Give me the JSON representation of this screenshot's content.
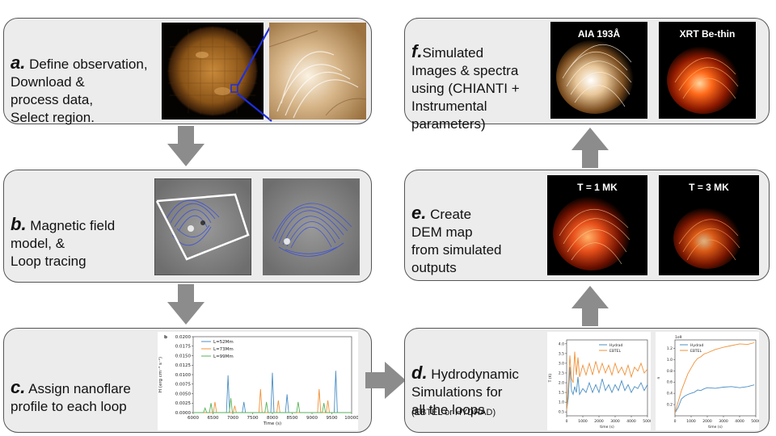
{
  "steps": {
    "a": {
      "letter": "a.",
      "text": " Define observation,\nDownload &\nprocess data,\nSelect region."
    },
    "b": {
      "letter": "b.",
      "text": " Magnetic field\nmodel, &\nLoop tracing"
    },
    "c": {
      "letter": "c.",
      "text": " Assign nanoflare\nprofile to each loop"
    },
    "d": {
      "letter": "d.",
      "text": " Hydrodynamic\nSimulations for\nall the loops",
      "note": "(EBTEL or HYDRAD)"
    },
    "e": {
      "letter": "e.",
      "text": " Create\nDEM map\nfrom simulated\noutputs"
    },
    "f": {
      "letter": "f.",
      "text": "Simulated\nImages & spectra\nusing (CHIANTI +\nInstrumental\nparameters)"
    }
  },
  "panels": {
    "aia": "AIA 193Å",
    "xrt": "XRT Be-thin",
    "t1": "T = 1 MK",
    "t3": "T = 3 MK"
  },
  "colors": {
    "box_bg": "#ececec",
    "arrow": "#8c8c8c",
    "field_lines": "#3a4fd8",
    "series_blue": "#4c8fc4",
    "series_orange": "#f0923a",
    "series_green": "#57b35a"
  },
  "chart_data": [
    {
      "type": "line",
      "panel_tag": "b",
      "ylabel": "H (erg cm⁻³ s⁻¹)",
      "xlabel": "Time (s)",
      "xlim": [
        6000,
        10000
      ],
      "ylim": [
        0,
        0.02
      ],
      "xticks": [
        "6000",
        "6500",
        "7000",
        "7500",
        "8000",
        "8500",
        "9000",
        "9500",
        "10000"
      ],
      "yticks": [
        "0.0000",
        "0.0025",
        "0.0050",
        "0.0075",
        "0.0100",
        "0.0125",
        "0.0150",
        "0.0175",
        "0.0200"
      ],
      "series": [
        {
          "name": "L=52Mm",
          "peaks": [
            [
              6880,
              0.0098
            ],
            [
              7280,
              0.0028
            ],
            [
              8000,
              0.0105
            ],
            [
              8370,
              0.0048
            ],
            [
              9600,
              0.011
            ]
          ]
        },
        {
          "name": "L=73Mm",
          "peaks": [
            [
              6550,
              0.0028
            ],
            [
              7050,
              0.0018
            ],
            [
              7700,
              0.0062
            ],
            [
              8150,
              0.0032
            ],
            [
              9180,
              0.0062
            ],
            [
              9400,
              0.0032
            ]
          ]
        },
        {
          "name": "L=99Mm",
          "peaks": [
            [
              6300,
              0.0012
            ],
            [
              6450,
              0.0025
            ],
            [
              6950,
              0.0038
            ],
            [
              7850,
              0.0028
            ],
            [
              8650,
              0.0028
            ],
            [
              9300,
              0.0025
            ]
          ]
        }
      ]
    },
    {
      "type": "line",
      "ylabel": "T (K)",
      "xlabel": "time (s)",
      "xlim": [
        0,
        5000
      ],
      "ylim": [
        0.3,
        4.2
      ],
      "xticks": [
        "0",
        "1000",
        "2000",
        "3000",
        "4000",
        "5000"
      ],
      "yticks": [
        "0.5",
        "1.0",
        "1.5",
        "2.0",
        "2.5",
        "3.0",
        "3.5",
        "4.0"
      ],
      "series": [
        {
          "name": "Hydrad",
          "x": [
            0,
            100,
            200,
            300,
            400,
            500,
            600,
            700,
            800,
            1000,
            1200,
            1400,
            1600,
            1800,
            2000,
            2200,
            2400,
            2600,
            2800,
            3000,
            3200,
            3400,
            3600,
            3800,
            4000,
            4200,
            4400,
            4600,
            4800,
            5000
          ],
          "y": [
            0.6,
            1.2,
            2.8,
            1.6,
            1.4,
            1.8,
            1.5,
            2.3,
            1.4,
            1.7,
            1.5,
            2.0,
            1.5,
            1.9,
            1.5,
            2.2,
            1.6,
            1.9,
            1.5,
            1.9,
            1.6,
            2.1,
            1.6,
            1.9,
            1.5,
            1.8,
            1.7,
            2.0,
            1.6,
            1.9
          ]
        },
        {
          "name": "EBTEL",
          "x": [
            0,
            100,
            200,
            300,
            400,
            500,
            600,
            700,
            800,
            1000,
            1200,
            1400,
            1600,
            1800,
            2000,
            2200,
            2400,
            2600,
            2800,
            3000,
            3200,
            3400,
            3600,
            3800,
            4000,
            4200,
            4400,
            4600,
            4800,
            5000
          ],
          "y": [
            0.6,
            1.8,
            3.4,
            2.2,
            2.0,
            3.6,
            2.4,
            3.3,
            2.3,
            2.9,
            2.4,
            3.0,
            2.4,
            3.1,
            2.5,
            3.0,
            2.5,
            2.9,
            2.4,
            3.0,
            2.5,
            2.8,
            2.4,
            2.9,
            2.3,
            2.8,
            2.6,
            3.0,
            2.5,
            2.7
          ]
        }
      ]
    },
    {
      "type": "line",
      "ylabel": "n",
      "xlabel": "time (s)",
      "scale_label": "1e9",
      "xlim": [
        0,
        5000
      ],
      "ylim": [
        0,
        1.35
      ],
      "xticks": [
        "0",
        "1000",
        "2000",
        "3000",
        "4000",
        "5000"
      ],
      "yticks": [
        "0.2",
        "0.4",
        "0.6",
        "0.8",
        "1.0",
        "1.2"
      ],
      "series": [
        {
          "name": "Hydrad",
          "x": [
            0,
            200,
            400,
            600,
            800,
            1000,
            1200,
            1400,
            1600,
            1800,
            2000,
            2500,
            3000,
            3500,
            4000,
            4500,
            4900
          ],
          "y": [
            0.05,
            0.15,
            0.3,
            0.35,
            0.38,
            0.4,
            0.42,
            0.46,
            0.45,
            0.48,
            0.5,
            0.49,
            0.51,
            0.52,
            0.5,
            0.52,
            0.55
          ]
        },
        {
          "name": "EBTEL",
          "x": [
            0,
            200,
            400,
            600,
            800,
            1000,
            1200,
            1400,
            1600,
            1800,
            2000,
            2500,
            3000,
            3500,
            4000,
            4500,
            4900
          ],
          "y": [
            0.05,
            0.25,
            0.45,
            0.6,
            0.75,
            0.85,
            0.95,
            1.02,
            1.05,
            1.1,
            1.12,
            1.18,
            1.22,
            1.25,
            1.28,
            1.27,
            1.3
          ]
        }
      ]
    }
  ]
}
